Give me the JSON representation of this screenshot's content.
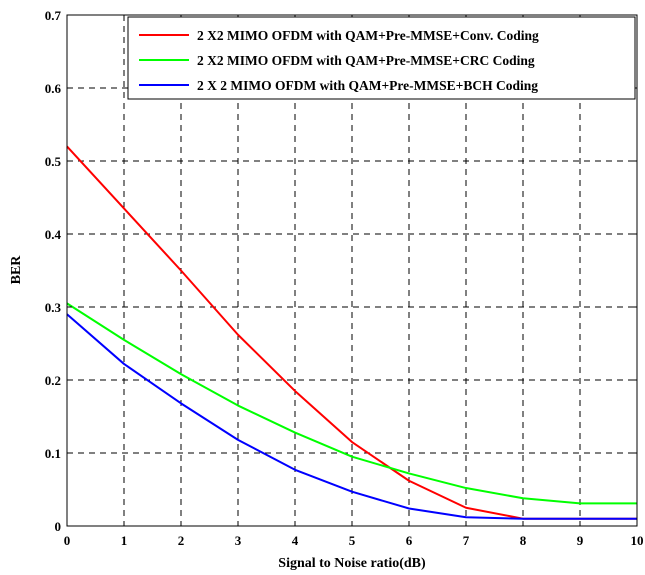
{
  "chart_data": {
    "type": "line",
    "title": "",
    "xlabel": "Signal to Noise ratio(dB)",
    "ylabel": "BER",
    "xlim": [
      0,
      10
    ],
    "ylim": [
      0,
      0.7
    ],
    "xticks": [
      "0",
      "1",
      "2",
      "3",
      "4",
      "5",
      "6",
      "7",
      "8",
      "9",
      "10"
    ],
    "yticks": [
      "0",
      "0.1",
      "0.2",
      "0.3",
      "0.4",
      "0.5",
      "0.6",
      "0.7"
    ],
    "grid": true,
    "legend_position": "top-right",
    "x": [
      0,
      1,
      2,
      3,
      4,
      5,
      6,
      7,
      8,
      9,
      10
    ],
    "series": [
      {
        "name": "2 X2 MIMO OFDM  with QAM+Pre-MMSE+Conv. Coding",
        "color": "#ff0000",
        "values": [
          0.52,
          0.435,
          0.35,
          0.262,
          0.185,
          0.115,
          0.062,
          0.025,
          0.01,
          0.01,
          0.01
        ]
      },
      {
        "name": "2 X2 MIMO OFDM with QAM+Pre-MMSE+CRC Coding",
        "color": "#00ff00",
        "values": [
          0.305,
          0.255,
          0.208,
          0.165,
          0.128,
          0.095,
          0.072,
          0.052,
          0.038,
          0.031,
          0.031
        ]
      },
      {
        "name": "2 X 2 MIMO OFDM with QAM+Pre-MMSE+BCH Coding",
        "color": "#0000ff",
        "values": [
          0.29,
          0.222,
          0.168,
          0.118,
          0.077,
          0.047,
          0.024,
          0.012,
          0.01,
          0.01,
          0.01
        ]
      }
    ]
  }
}
